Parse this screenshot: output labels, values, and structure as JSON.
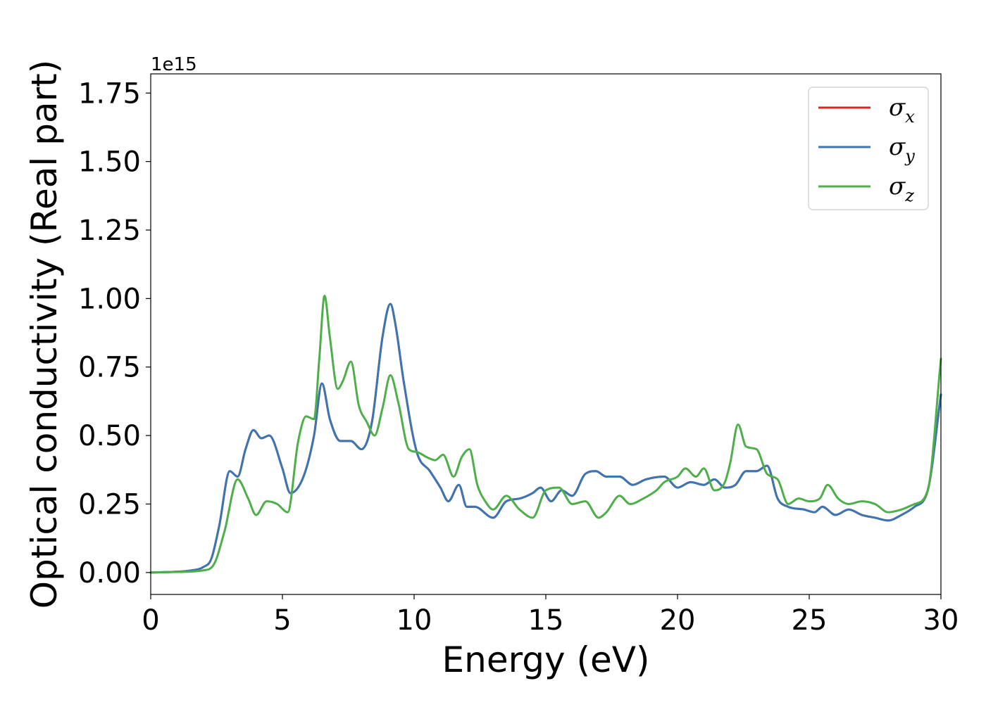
{
  "chart_data": {
    "type": "line",
    "xlabel": "Energy (eV)",
    "ylabel": "Optical conductivity (Real part)",
    "y_offset_label": "1e15",
    "xlim": [
      0,
      30
    ],
    "ylim": [
      -0.08,
      1.82
    ],
    "xticks": [
      0,
      5,
      10,
      15,
      20,
      25,
      30
    ],
    "xtick_labels": [
      "0",
      "5",
      "10",
      "15",
      "20",
      "25",
      "30"
    ],
    "yticks": [
      0.0,
      0.25,
      0.5,
      0.75,
      1.0,
      1.25,
      1.5,
      1.75
    ],
    "ytick_labels": [
      "0.00",
      "0.25",
      "0.50",
      "0.75",
      "1.00",
      "1.25",
      "1.50",
      "1.75"
    ],
    "grid": false,
    "legend_position": "top-right",
    "series": [
      {
        "name": "σx",
        "legend_main": "σ",
        "legend_sub": "x",
        "color": "#d62728",
        "x": [
          0,
          1,
          1.5,
          2,
          2.3,
          2.6,
          3.0,
          3.3,
          3.6,
          3.9,
          4.2,
          4.5,
          5.0,
          5.3,
          5.8,
          6.2,
          6.5,
          6.8,
          7.2,
          7.6,
          8.0,
          8.4,
          8.8,
          9.1,
          9.3,
          9.6,
          10.1,
          10.6,
          11.0,
          11.3,
          11.7,
          12.0,
          12.3,
          13.0,
          13.5,
          14.0,
          14.5,
          14.8,
          15.2,
          15.6,
          16.0,
          16.5,
          16.9,
          17.3,
          17.8,
          18.3,
          18.8,
          19.5,
          20.0,
          20.5,
          21.0,
          21.4,
          21.8,
          22.2,
          22.6,
          23.0,
          23.4,
          23.8,
          24.2,
          24.8,
          25.2,
          25.5,
          26.0,
          26.5,
          27.0,
          27.5,
          28.0,
          28.5,
          29.0,
          29.5,
          30.0
        ],
        "y": [
          0,
          0.003,
          0.007,
          0.02,
          0.05,
          0.17,
          0.37,
          0.35,
          0.45,
          0.52,
          0.49,
          0.5,
          0.38,
          0.29,
          0.35,
          0.5,
          0.69,
          0.56,
          0.48,
          0.48,
          0.45,
          0.55,
          0.86,
          0.98,
          0.9,
          0.7,
          0.44,
          0.37,
          0.31,
          0.26,
          0.32,
          0.24,
          0.24,
          0.2,
          0.26,
          0.27,
          0.29,
          0.31,
          0.26,
          0.3,
          0.28,
          0.36,
          0.37,
          0.35,
          0.35,
          0.32,
          0.34,
          0.35,
          0.31,
          0.33,
          0.32,
          0.34,
          0.31,
          0.32,
          0.37,
          0.37,
          0.39,
          0.27,
          0.24,
          0.23,
          0.22,
          0.24,
          0.21,
          0.23,
          0.21,
          0.2,
          0.19,
          0.21,
          0.24,
          0.3,
          0.65
        ]
      },
      {
        "name": "σy",
        "legend_main": "σ",
        "legend_sub": "y",
        "color": "#3a76b4",
        "x": [
          0,
          1,
          1.5,
          2,
          2.3,
          2.6,
          3.0,
          3.3,
          3.6,
          3.9,
          4.2,
          4.5,
          5.0,
          5.3,
          5.8,
          6.2,
          6.5,
          6.8,
          7.2,
          7.6,
          8.0,
          8.4,
          8.8,
          9.1,
          9.3,
          9.6,
          10.1,
          10.6,
          11.0,
          11.3,
          11.7,
          12.0,
          12.3,
          13.0,
          13.5,
          14.0,
          14.5,
          14.8,
          15.2,
          15.6,
          16.0,
          16.5,
          16.9,
          17.3,
          17.8,
          18.3,
          18.8,
          19.5,
          20.0,
          20.5,
          21.0,
          21.4,
          21.8,
          22.2,
          22.6,
          23.0,
          23.4,
          23.8,
          24.2,
          24.8,
          25.2,
          25.5,
          26.0,
          26.5,
          27.0,
          27.5,
          28.0,
          28.5,
          29.0,
          29.5,
          30.0
        ],
        "y": [
          0,
          0.003,
          0.007,
          0.02,
          0.05,
          0.17,
          0.37,
          0.35,
          0.45,
          0.52,
          0.49,
          0.5,
          0.38,
          0.29,
          0.35,
          0.5,
          0.69,
          0.56,
          0.48,
          0.48,
          0.45,
          0.55,
          0.86,
          0.98,
          0.9,
          0.7,
          0.44,
          0.37,
          0.31,
          0.26,
          0.32,
          0.24,
          0.24,
          0.2,
          0.26,
          0.27,
          0.29,
          0.31,
          0.26,
          0.3,
          0.28,
          0.36,
          0.37,
          0.35,
          0.35,
          0.32,
          0.34,
          0.35,
          0.31,
          0.33,
          0.32,
          0.34,
          0.31,
          0.32,
          0.37,
          0.37,
          0.39,
          0.27,
          0.24,
          0.23,
          0.22,
          0.24,
          0.21,
          0.23,
          0.21,
          0.2,
          0.19,
          0.21,
          0.24,
          0.3,
          0.65
        ]
      },
      {
        "name": "σz",
        "legend_main": "σ",
        "legend_sub": "z",
        "color": "#4dae4a",
        "x": [
          0,
          1,
          2,
          2.4,
          2.8,
          3.3,
          3.7,
          4.0,
          4.4,
          4.8,
          5.2,
          5.6,
          5.9,
          6.2,
          6.4,
          6.6,
          6.8,
          7.1,
          7.3,
          7.6,
          7.9,
          8.2,
          8.5,
          8.8,
          9.1,
          9.4,
          9.8,
          10.1,
          10.5,
          10.8,
          11.1,
          11.5,
          11.8,
          12.1,
          12.4,
          12.7,
          13.0,
          13.5,
          14.0,
          14.5,
          15.0,
          15.5,
          16.0,
          16.5,
          17.0,
          17.3,
          17.8,
          18.2,
          18.7,
          19.2,
          19.5,
          20.0,
          20.3,
          20.7,
          21.0,
          21.4,
          21.8,
          22.0,
          22.3,
          22.6,
          23.0,
          23.4,
          23.8,
          24.2,
          24.6,
          25.0,
          25.4,
          25.7,
          26.1,
          26.5,
          27.0,
          27.5,
          28.0,
          28.5,
          29.0,
          29.5,
          30.0
        ],
        "y": [
          0,
          0.002,
          0.008,
          0.03,
          0.15,
          0.34,
          0.27,
          0.21,
          0.26,
          0.25,
          0.22,
          0.48,
          0.57,
          0.56,
          0.78,
          1.01,
          0.86,
          0.67,
          0.7,
          0.77,
          0.61,
          0.55,
          0.5,
          0.6,
          0.72,
          0.62,
          0.45,
          0.44,
          0.42,
          0.41,
          0.43,
          0.35,
          0.42,
          0.45,
          0.32,
          0.26,
          0.23,
          0.28,
          0.23,
          0.2,
          0.3,
          0.31,
          0.25,
          0.26,
          0.2,
          0.22,
          0.28,
          0.25,
          0.27,
          0.3,
          0.33,
          0.35,
          0.38,
          0.35,
          0.38,
          0.3,
          0.33,
          0.4,
          0.54,
          0.46,
          0.45,
          0.36,
          0.34,
          0.25,
          0.27,
          0.26,
          0.27,
          0.32,
          0.27,
          0.25,
          0.26,
          0.25,
          0.22,
          0.23,
          0.25,
          0.3,
          0.78
        ]
      }
    ]
  }
}
